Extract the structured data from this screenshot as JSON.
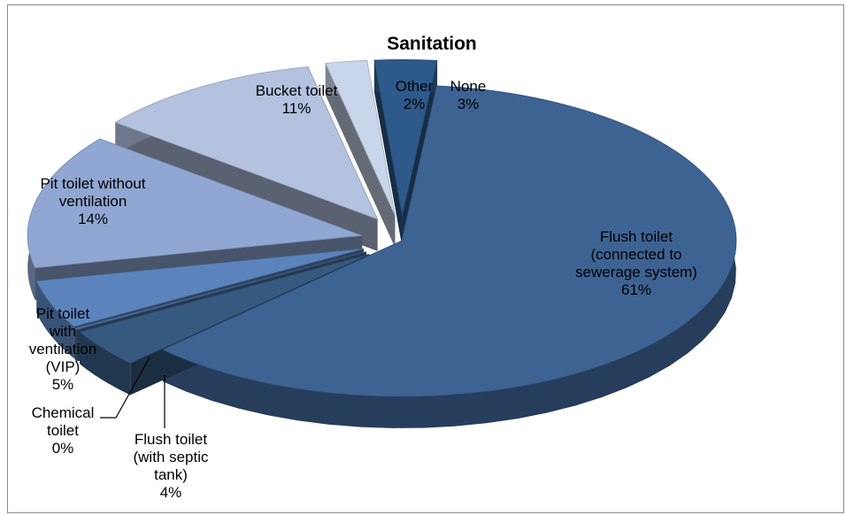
{
  "chart_data": {
    "type": "pie",
    "title": "Sanitation",
    "slices": [
      {
        "label": "Flush toilet (connected to sewerage system)",
        "label_lines": [
          "Flush toilet",
          "(connected to",
          "sewerage system)"
        ],
        "value": 61,
        "value_label": "61%",
        "color": "#3d6393"
      },
      {
        "label": "Flush toilet (with septic tank)",
        "label_lines": [
          "Flush toilet",
          "(with septic",
          "tank)"
        ],
        "value": 4,
        "value_label": "4%",
        "color": "#36597f"
      },
      {
        "label": "Chemical toilet",
        "label_lines": [
          "Chemical",
          "toilet"
        ],
        "value": 0,
        "value_label": "0%",
        "color": "#4a6f9c"
      },
      {
        "label": "Pit toilet with ventilation (VIP)",
        "label_lines": [
          "Pit toilet",
          "with",
          "ventilation",
          "(VIP)"
        ],
        "value": 5,
        "value_label": "5%",
        "color": "#5b84bd"
      },
      {
        "label": "Pit toilet without ventilation",
        "label_lines": [
          "Pit toilet without",
          "ventilation"
        ],
        "value": 14,
        "value_label": "14%",
        "color": "#8fa7d2"
      },
      {
        "label": "Bucket toilet",
        "label_lines": [
          "Bucket toilet"
        ],
        "value": 11,
        "value_label": "11%",
        "color": "#b3c2df"
      },
      {
        "label": "Other",
        "label_lines": [
          "Other"
        ],
        "value": 2,
        "value_label": "2%",
        "color": "#c9d5ea"
      },
      {
        "label": "None",
        "label_lines": [
          "None"
        ],
        "value": 3,
        "value_label": "3%",
        "color": "#2d5a8a"
      }
    ],
    "legend": "none",
    "style": "3d-exploded"
  }
}
